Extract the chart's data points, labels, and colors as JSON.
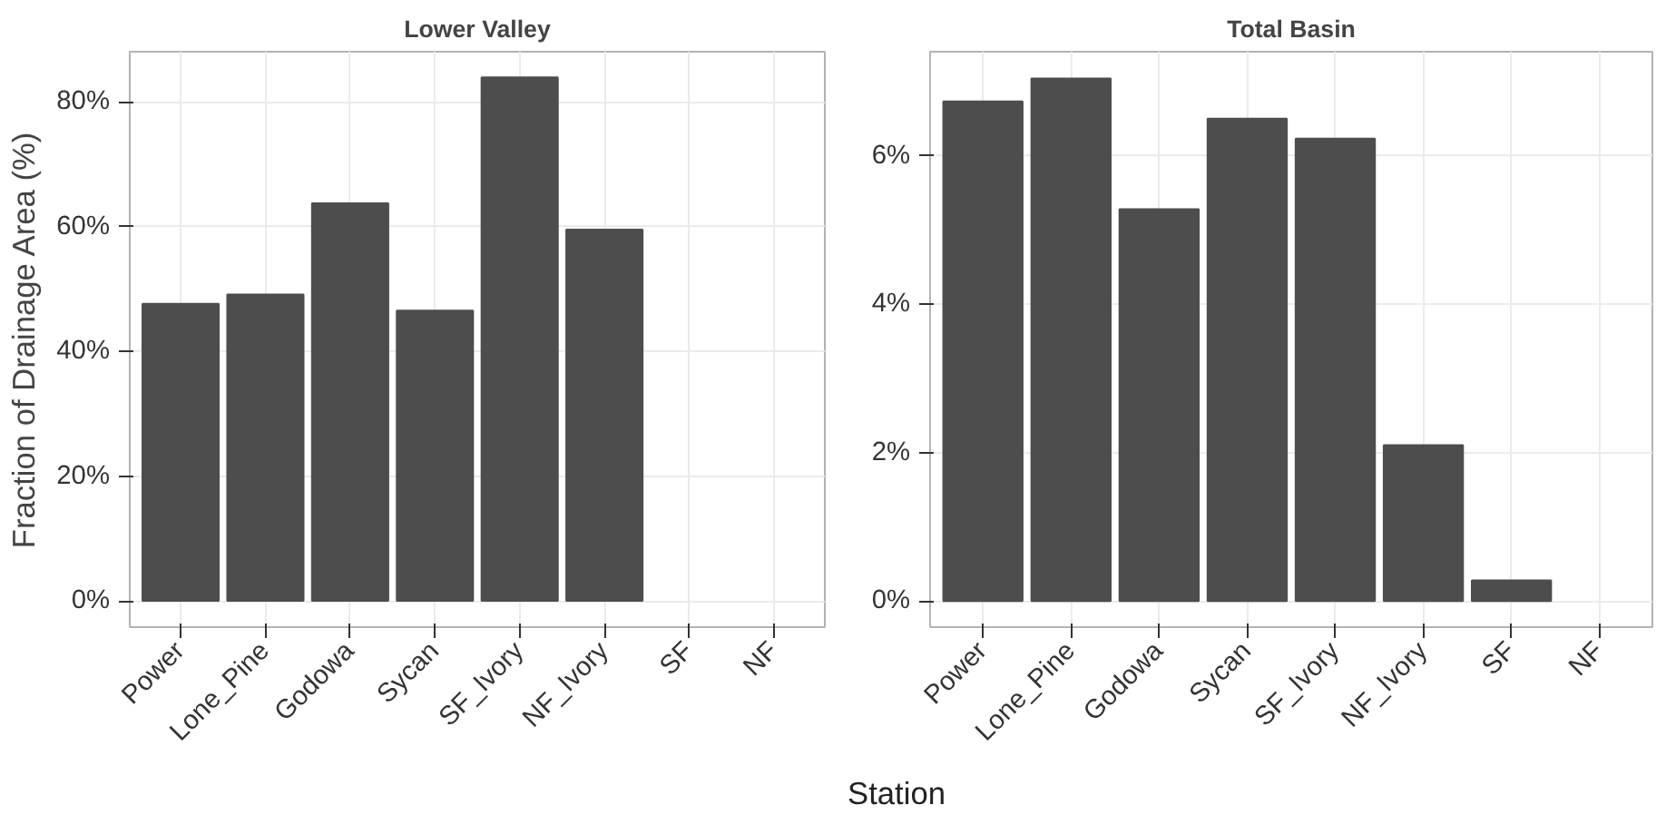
{
  "chart_data": [
    {
      "type": "bar",
      "title": "Lower Valley",
      "ylabel": "Fraction of Drainage Area (%)",
      "xlabel": "Station",
      "categories": [
        "Power",
        "Lone_Pine",
        "Godowa",
        "Sycan",
        "SF_Ivory",
        "NF_Ivory",
        "SF",
        "NF"
      ],
      "values": [
        47.6,
        49.1,
        63.7,
        46.5,
        83.9,
        59.5,
        null,
        null
      ],
      "color": "#4d4d4d",
      "ylim": [
        -4.2,
        88
      ],
      "yticks": [
        {
          "value": 0,
          "label": "0%"
        },
        {
          "value": 20,
          "label": "20%"
        },
        {
          "value": 40,
          "label": "40%"
        },
        {
          "value": 60,
          "label": "60%"
        },
        {
          "value": 80,
          "label": "80%"
        }
      ],
      "grid": true
    },
    {
      "type": "bar",
      "title": "Total Basin",
      "categories": [
        "Power",
        "Lone_Pine",
        "Godowa",
        "Sycan",
        "SF_Ivory",
        "NF_Ivory",
        "SF",
        "NF"
      ],
      "values": [
        6.73,
        7.04,
        5.28,
        6.5,
        6.23,
        2.1,
        0.28,
        null
      ],
      "color": "#4d4d4d",
      "ylim": [
        -0.35,
        7.4
      ],
      "yticks": [
        {
          "value": 0,
          "label": "0%"
        },
        {
          "value": 2,
          "label": "2%"
        },
        {
          "value": 4,
          "label": "4%"
        },
        {
          "value": 6,
          "label": "6%"
        }
      ],
      "grid": true
    }
  ]
}
